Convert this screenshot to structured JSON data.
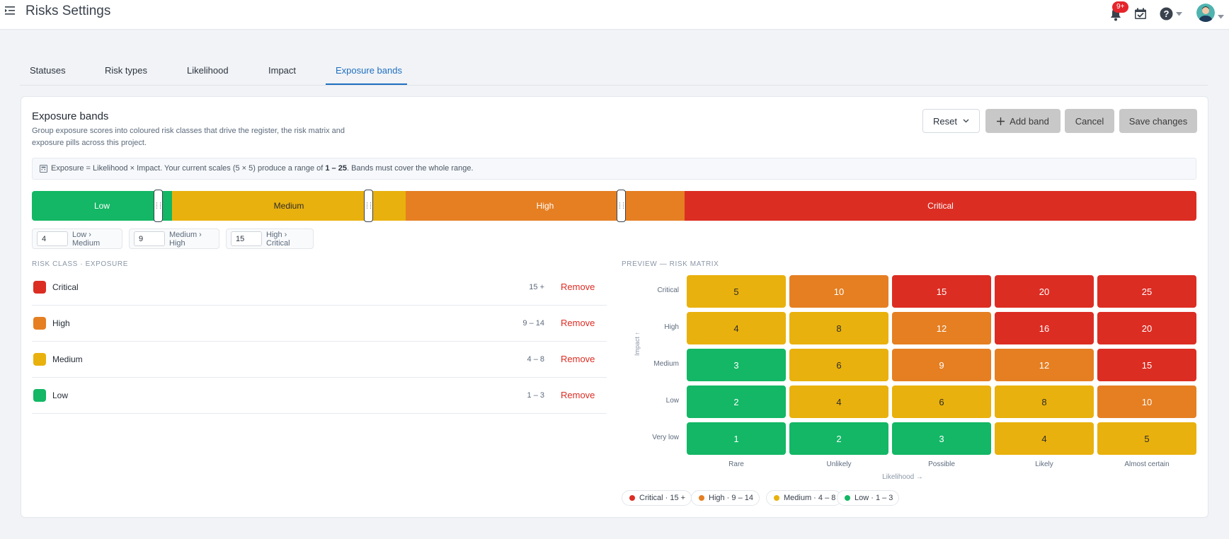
{
  "header": {
    "title": "Risks Settings",
    "notification_badge": "9+"
  },
  "tabs": [
    {
      "label": "Statuses"
    },
    {
      "label": "Risk types"
    },
    {
      "label": "Likelihood"
    },
    {
      "label": "Impact"
    },
    {
      "label": "Exposure bands",
      "active": true
    }
  ],
  "card": {
    "title": "Exposure bands",
    "description": "Group exposure scores into coloured risk classes that drive the register, the risk matrix and exposure pills across this project.",
    "actions": {
      "reset": "Reset",
      "add_band": "Add band",
      "cancel": "Cancel",
      "save": "Save changes"
    },
    "info": {
      "prefix": "Exposure = Likelihood × Impact. Your current scales (5 × 5) produce a range of ",
      "range": "1 – 25",
      "suffix": ". Bands must cover the whole range."
    }
  },
  "bands": {
    "low": "Low",
    "medium": "Medium",
    "high": "High",
    "critical": "Critical"
  },
  "thresholds": [
    {
      "value": "4",
      "label": "Low › Medium"
    },
    {
      "value": "9",
      "label": "Medium › High"
    },
    {
      "value": "15",
      "label": "High › Critical"
    }
  ],
  "risk_classes": {
    "section_label": "RISK CLASS · EXPOSURE",
    "remove_label": "Remove",
    "items": [
      {
        "name": "Critical",
        "range": "15 +",
        "color": "#dc2d23"
      },
      {
        "name": "High",
        "range": "9 – 14",
        "color": "#e57f22"
      },
      {
        "name": "Medium",
        "range": "4 – 8",
        "color": "#e9b10d"
      },
      {
        "name": "Low",
        "range": "1 – 3",
        "color": "#13b765"
      }
    ]
  },
  "matrix": {
    "section_label": "PREVIEW — RISK MATRIX",
    "y_axis_label": "Impact ↑",
    "x_axis_label": "Likelihood →",
    "row_labels": [
      "Critical",
      "High",
      "Medium",
      "Low",
      "Very low"
    ],
    "col_labels": [
      "Rare",
      "Unlikely",
      "Possible",
      "Likely",
      "Almost certain"
    ],
    "values": [
      [
        "5",
        "10",
        "15",
        "20",
        "25"
      ],
      [
        "4",
        "8",
        "12",
        "16",
        "20"
      ],
      [
        "3",
        "6",
        "9",
        "12",
        "15"
      ],
      [
        "2",
        "4",
        "6",
        "8",
        "10"
      ],
      [
        "1",
        "2",
        "3",
        "4",
        "5"
      ]
    ],
    "classes": [
      [
        "medium",
        "high",
        "critical",
        "critical",
        "critical"
      ],
      [
        "medium",
        "medium",
        "high",
        "critical",
        "critical"
      ],
      [
        "low",
        "medium",
        "high",
        "high",
        "critical"
      ],
      [
        "low",
        "medium",
        "medium",
        "medium",
        "high"
      ],
      [
        "low",
        "low",
        "low",
        "medium",
        "medium"
      ]
    ]
  },
  "legend": [
    {
      "label": "Critical · 15 +",
      "color": "#dc2d23"
    },
    {
      "label": "High · 9 – 14",
      "color": "#e57f22"
    },
    {
      "label": "Medium · 4 – 8",
      "color": "#e9b10d"
    },
    {
      "label": "Low · 1 – 3",
      "color": "#13b765"
    }
  ],
  "colors": {
    "accent": "#1f6fc1",
    "critical": "#dc2d23",
    "high": "#e57f22",
    "medium": "#e9b10d",
    "low": "#13b765"
  }
}
